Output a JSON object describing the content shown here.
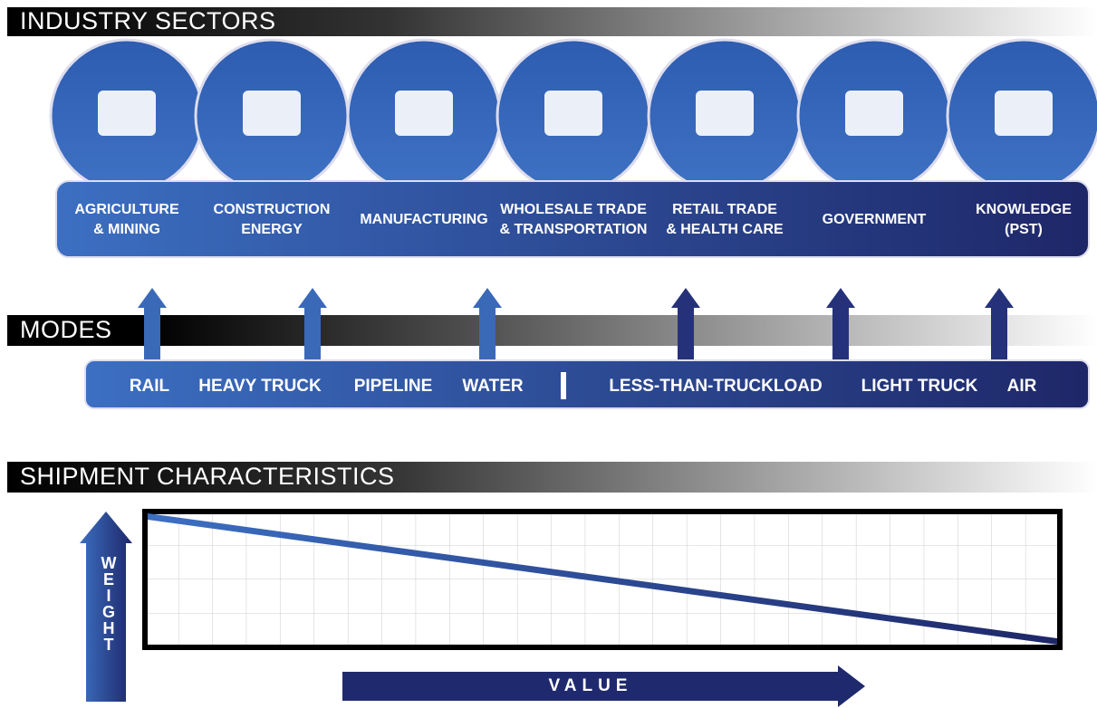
{
  "sections": {
    "industry": {
      "title": "INDUSTRY SECTORS",
      "sectors": [
        {
          "lines": [
            "AGRICULTURE",
            "& MINING"
          ]
        },
        {
          "lines": [
            "CONSTRUCTION",
            "ENERGY"
          ]
        },
        {
          "lines": [
            "MANUFACTURING"
          ]
        },
        {
          "lines": [
            "WHOLESALE TRADE",
            "& TRANSPORTATION"
          ]
        },
        {
          "lines": [
            "RETAIL TRADE",
            "& HEALTH CARE"
          ]
        },
        {
          "lines": [
            "GOVERNMENT"
          ]
        },
        {
          "lines": [
            "KNOWLEDGE",
            "(PST)"
          ]
        }
      ]
    },
    "modes": {
      "title": "MODES",
      "items": [
        "RAIL",
        "HEAVY TRUCK",
        "PIPELINE",
        "WATER",
        "LESS-THAN-TRUCKLOAD",
        "LIGHT TRUCK",
        "AIR"
      ]
    },
    "shipment": {
      "title": "SHIPMENT CHARACTERISTICS",
      "y_label": "WEIGHT",
      "x_label": "VALUE"
    }
  }
}
